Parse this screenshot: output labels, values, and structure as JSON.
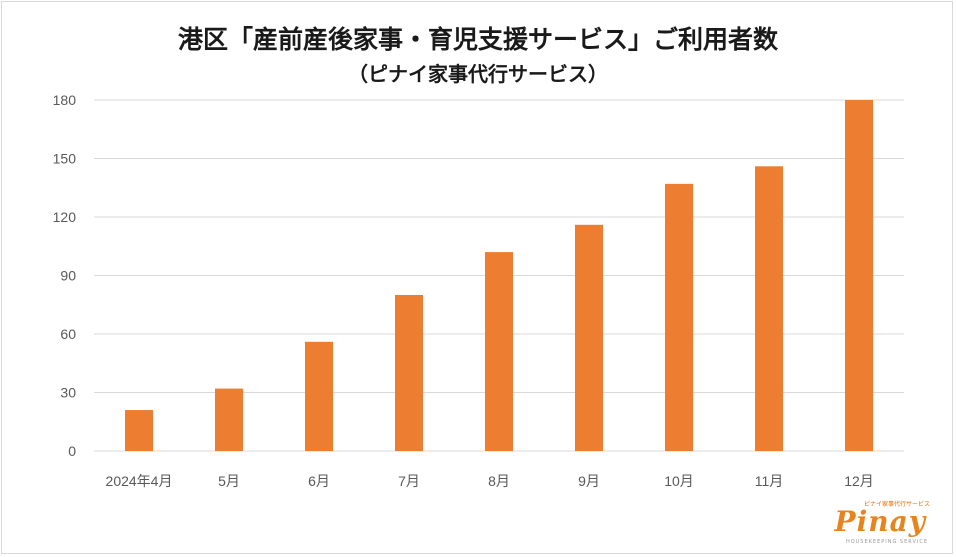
{
  "chart_data": {
    "type": "bar",
    "title": "港区「産前産後家事・育児支援サービス」ご利用者数",
    "subtitle": "（ピナイ家事代行サービス）",
    "categories": [
      "2024年4月",
      "5月",
      "6月",
      "7月",
      "8月",
      "9月",
      "10月",
      "11月",
      "12月"
    ],
    "values": [
      21,
      32,
      56,
      80,
      102,
      116,
      137,
      146,
      180
    ],
    "ylim": [
      0,
      180
    ],
    "yticks": [
      0,
      30,
      60,
      90,
      120,
      150,
      180
    ],
    "grid": true,
    "bar_color": "#ed7d31"
  },
  "logo": {
    "small_text": "ピナイ家事代行サービス",
    "main_text": "Pinay",
    "sub_text": "HOUSEKEEPING SERVICE"
  }
}
